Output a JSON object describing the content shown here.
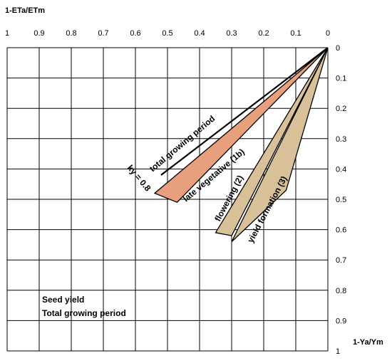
{
  "chart_data": {
    "type": "area",
    "xlabel": "1-ETa/ETm",
    "ylabel": "1-Ya/Ym",
    "xlim": [
      1,
      0
    ],
    "ylim": [
      0,
      1
    ],
    "x_ticks": [
      "1",
      "0.9",
      "0.8",
      "0.7",
      "0.6",
      "0.5",
      "0.4",
      "0.3",
      "0.2",
      "0.1",
      "0"
    ],
    "y_ticks": [
      "0",
      "0.1",
      "0.2",
      "0.3",
      "0.4",
      "0.5",
      "0.6",
      "0.7",
      "0.8",
      "0.9",
      "1"
    ],
    "grid": true,
    "x_axis_position": "top",
    "y_axis_position": "right",
    "series": [
      {
        "name": "total growing period",
        "type": "line",
        "color": "#000000",
        "points": [
          [
            0,
            0
          ],
          [
            0.52,
            0.42
          ]
        ]
      },
      {
        "name": "late vegetative (1b)",
        "type": "wedge",
        "color": "#e8a07c",
        "points": [
          [
            0,
            0
          ],
          [
            0.54,
            0.48
          ],
          [
            0.47,
            0.51
          ]
        ]
      },
      {
        "name": "flowering (2)",
        "type": "wedge",
        "color": "#d8c098",
        "points": [
          [
            0,
            0
          ],
          [
            0.35,
            0.61
          ],
          [
            0.3,
            0.62
          ]
        ]
      },
      {
        "name": "yield formation (3)",
        "type": "wedge",
        "color": "#d8c098",
        "points": [
          [
            0,
            0
          ],
          [
            0.3,
            0.64
          ],
          [
            0.13,
            0.47
          ]
        ]
      }
    ],
    "annotations": [
      {
        "id": "ky",
        "text": "ky = 0.8"
      }
    ],
    "note_lines": [
      "Seed yield",
      "Total growing period"
    ]
  }
}
